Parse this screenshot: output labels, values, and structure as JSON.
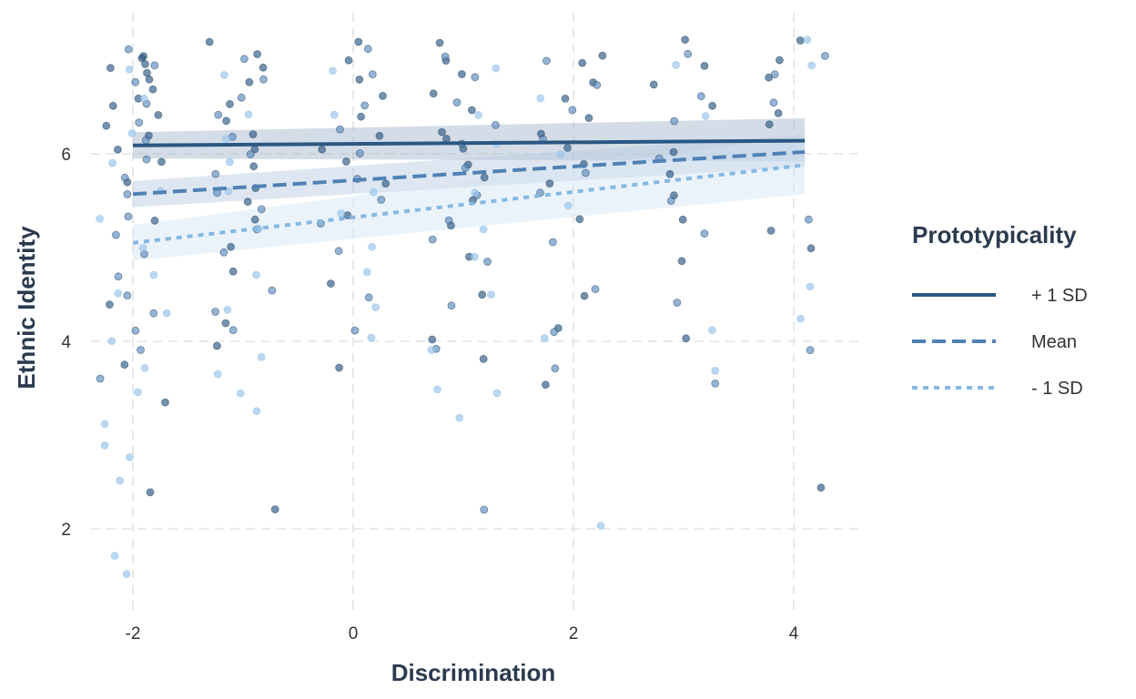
{
  "chart_data": {
    "type": "scatter",
    "title": "",
    "xlabel": "Discrimination",
    "ylabel": "Ethnic Identity",
    "xlim": [
      -2.35,
      4.65
    ],
    "ylim": [
      1.2,
      7.3
    ],
    "x_ticks": [
      -2,
      0,
      2,
      4
    ],
    "x_tick_labels": [
      "-2",
      "0",
      "2",
      "4"
    ],
    "y_ticks": [
      2,
      4,
      6
    ],
    "y_tick_labels": [
      "2",
      "4",
      "6"
    ],
    "grid": true,
    "legend": {
      "title": "Prototypicality",
      "placement": "right",
      "entries": [
        {
          "label": "+ 1 SD",
          "color": "#2a5783",
          "linestyle": "solid"
        },
        {
          "label": "Mean",
          "color": "#4f81b4",
          "linestyle": "dashed"
        },
        {
          "label": "- 1 SD",
          "color": "#86b8e2",
          "linestyle": "dotted"
        }
      ]
    },
    "lines": [
      {
        "group": "+ 1 SD",
        "x": [
          -2,
          4.1
        ],
        "y": [
          6.09,
          6.14
        ],
        "ci_lower": [
          5.95,
          5.92
        ],
        "ci_upper": [
          6.23,
          6.38
        ],
        "color": "#2a5783",
        "band_color": "#9fb3c9"
      },
      {
        "group": "Mean",
        "x": [
          -2,
          4.1
        ],
        "y": [
          5.57,
          6.02
        ],
        "ci_lower": [
          5.43,
          5.86
        ],
        "ci_upper": [
          5.71,
          6.2
        ],
        "color": "#4f81b4",
        "band_color": "#b6cae0"
      },
      {
        "group": "- 1 SD",
        "x": [
          -2,
          4.1
        ],
        "y": [
          5.05,
          5.88
        ],
        "ci_lower": [
          4.86,
          5.57
        ],
        "ci_upper": [
          5.24,
          6.19
        ],
        "color": "#86b8e2",
        "band_color": "#d3e5f5"
      }
    ],
    "points": [
      {
        "x": -2,
        "y": 7.05,
        "g": "+ 1 SD"
      },
      {
        "x": -2,
        "y": 7.0,
        "g": "+ 1 SD"
      },
      {
        "x": -2,
        "y": 6.95,
        "g": "+ 1 SD"
      },
      {
        "x": -2,
        "y": 6.9,
        "g": "+ 1 SD"
      },
      {
        "x": -2,
        "y": 6.85,
        "g": "+ 1 SD"
      },
      {
        "x": -2,
        "y": 6.8,
        "g": "+ 1 SD"
      },
      {
        "x": -2,
        "y": 6.7,
        "g": "+ 1 SD"
      },
      {
        "x": -2,
        "y": 6.6,
        "g": "+ 1 SD"
      },
      {
        "x": -2,
        "y": 6.5,
        "g": "+ 1 SD"
      },
      {
        "x": -2,
        "y": 6.4,
        "g": "+ 1 SD"
      },
      {
        "x": -2,
        "y": 6.3,
        "g": "+ 1 SD"
      },
      {
        "x": -2,
        "y": 6.2,
        "g": "+ 1 SD"
      },
      {
        "x": -2,
        "y": 6.05,
        "g": "+ 1 SD"
      },
      {
        "x": -2,
        "y": 5.9,
        "g": "+ 1 SD"
      },
      {
        "x": -2,
        "y": 5.7,
        "g": "+ 1 SD"
      },
      {
        "x": -2,
        "y": 5.3,
        "g": "+ 1 SD"
      },
      {
        "x": -2,
        "y": 4.4,
        "g": "+ 1 SD"
      },
      {
        "x": -2,
        "y": 3.75,
        "g": "+ 1 SD"
      },
      {
        "x": -2,
        "y": 3.35,
        "g": "+ 1 SD"
      },
      {
        "x": -2,
        "y": 2.4,
        "g": "+ 1 SD"
      },
      {
        "x": -2,
        "y": 7.1,
        "g": "Mean"
      },
      {
        "x": -2,
        "y": 6.95,
        "g": "Mean"
      },
      {
        "x": -2,
        "y": 6.75,
        "g": "Mean"
      },
      {
        "x": -2,
        "y": 6.55,
        "g": "Mean"
      },
      {
        "x": -2,
        "y": 6.35,
        "g": "Mean"
      },
      {
        "x": -2,
        "y": 6.15,
        "g": "Mean"
      },
      {
        "x": -2,
        "y": 5.95,
        "g": "Mean"
      },
      {
        "x": -2,
        "y": 5.75,
        "g": "Mean"
      },
      {
        "x": -2,
        "y": 5.55,
        "g": "Mean"
      },
      {
        "x": -2,
        "y": 5.35,
        "g": "Mean"
      },
      {
        "x": -2,
        "y": 5.15,
        "g": "Mean"
      },
      {
        "x": -2,
        "y": 4.95,
        "g": "Mean"
      },
      {
        "x": -2,
        "y": 4.7,
        "g": "Mean"
      },
      {
        "x": -2,
        "y": 4.5,
        "g": "Mean"
      },
      {
        "x": -2,
        "y": 4.3,
        "g": "Mean"
      },
      {
        "x": -2,
        "y": 4.1,
        "g": "Mean"
      },
      {
        "x": -2,
        "y": 3.9,
        "g": "Mean"
      },
      {
        "x": -2,
        "y": 3.6,
        "g": "Mean"
      },
      {
        "x": -2,
        "y": 6.9,
        "g": "- 1 SD"
      },
      {
        "x": -2,
        "y": 6.6,
        "g": "- 1 SD"
      },
      {
        "x": -2,
        "y": 6.2,
        "g": "- 1 SD"
      },
      {
        "x": -2,
        "y": 5.9,
        "g": "- 1 SD"
      },
      {
        "x": -2,
        "y": 5.6,
        "g": "- 1 SD"
      },
      {
        "x": -2,
        "y": 5.3,
        "g": "- 1 SD"
      },
      {
        "x": -2,
        "y": 5.0,
        "g": "- 1 SD"
      },
      {
        "x": -2,
        "y": 4.7,
        "g": "- 1 SD"
      },
      {
        "x": -2,
        "y": 4.5,
        "g": "- 1 SD"
      },
      {
        "x": -2,
        "y": 4.3,
        "g": "- 1 SD"
      },
      {
        "x": -2,
        "y": 4.0,
        "g": "- 1 SD"
      },
      {
        "x": -2,
        "y": 3.7,
        "g": "- 1 SD"
      },
      {
        "x": -2,
        "y": 3.45,
        "g": "- 1 SD"
      },
      {
        "x": -2,
        "y": 3.1,
        "g": "- 1 SD"
      },
      {
        "x": -2,
        "y": 2.9,
        "g": "- 1 SD"
      },
      {
        "x": -2,
        "y": 2.75,
        "g": "- 1 SD"
      },
      {
        "x": -2,
        "y": 2.5,
        "g": "- 1 SD"
      },
      {
        "x": -2,
        "y": 1.7,
        "g": "- 1 SD"
      },
      {
        "x": -2,
        "y": 1.52,
        "g": "- 1 SD"
      },
      {
        "x": -1,
        "y": 7.2,
        "g": "+ 1 SD"
      },
      {
        "x": -1,
        "y": 7.05,
        "g": "+ 1 SD"
      },
      {
        "x": -1,
        "y": 6.9,
        "g": "+ 1 SD"
      },
      {
        "x": -1,
        "y": 6.75,
        "g": "+ 1 SD"
      },
      {
        "x": -1,
        "y": 6.55,
        "g": "+ 1 SD"
      },
      {
        "x": -1,
        "y": 6.35,
        "g": "+ 1 SD"
      },
      {
        "x": -1,
        "y": 6.2,
        "g": "+ 1 SD"
      },
      {
        "x": -1,
        "y": 6.05,
        "g": "+ 1 SD"
      },
      {
        "x": -1,
        "y": 5.85,
        "g": "+ 1 SD"
      },
      {
        "x": -1,
        "y": 5.65,
        "g": "+ 1 SD"
      },
      {
        "x": -1,
        "y": 5.5,
        "g": "+ 1 SD"
      },
      {
        "x": -1,
        "y": 5.3,
        "g": "+ 1 SD"
      },
      {
        "x": -1,
        "y": 5.0,
        "g": "+ 1 SD"
      },
      {
        "x": -1,
        "y": 4.75,
        "g": "+ 1 SD"
      },
      {
        "x": -1,
        "y": 4.2,
        "g": "+ 1 SD"
      },
      {
        "x": -1,
        "y": 3.95,
        "g": "+ 1 SD"
      },
      {
        "x": -1,
        "y": 2.2,
        "g": "+ 1 SD"
      },
      {
        "x": -1,
        "y": 7.0,
        "g": "Mean"
      },
      {
        "x": -1,
        "y": 6.8,
        "g": "Mean"
      },
      {
        "x": -1,
        "y": 6.6,
        "g": "Mean"
      },
      {
        "x": -1,
        "y": 6.4,
        "g": "Mean"
      },
      {
        "x": -1,
        "y": 6.2,
        "g": "Mean"
      },
      {
        "x": -1,
        "y": 6.0,
        "g": "Mean"
      },
      {
        "x": -1,
        "y": 5.8,
        "g": "Mean"
      },
      {
        "x": -1,
        "y": 5.6,
        "g": "Mean"
      },
      {
        "x": -1,
        "y": 5.4,
        "g": "Mean"
      },
      {
        "x": -1,
        "y": 5.2,
        "g": "Mean"
      },
      {
        "x": -1,
        "y": 4.95,
        "g": "Mean"
      },
      {
        "x": -1,
        "y": 4.55,
        "g": "Mean"
      },
      {
        "x": -1,
        "y": 4.3,
        "g": "Mean"
      },
      {
        "x": -1,
        "y": 4.1,
        "g": "Mean"
      },
      {
        "x": -1,
        "y": 6.85,
        "g": "- 1 SD"
      },
      {
        "x": -1,
        "y": 6.4,
        "g": "- 1 SD"
      },
      {
        "x": -1,
        "y": 6.15,
        "g": "- 1 SD"
      },
      {
        "x": -1,
        "y": 5.9,
        "g": "- 1 SD"
      },
      {
        "x": -1,
        "y": 5.6,
        "g": "- 1 SD"
      },
      {
        "x": -1,
        "y": 5.2,
        "g": "- 1 SD"
      },
      {
        "x": -1,
        "y": 4.7,
        "g": "- 1 SD"
      },
      {
        "x": -1,
        "y": 4.35,
        "g": "- 1 SD"
      },
      {
        "x": -1,
        "y": 3.85,
        "g": "- 1 SD"
      },
      {
        "x": -1,
        "y": 3.65,
        "g": "- 1 SD"
      },
      {
        "x": -1,
        "y": 3.45,
        "g": "- 1 SD"
      },
      {
        "x": -1,
        "y": 3.25,
        "g": "- 1 SD"
      },
      {
        "x": 0,
        "y": 7.2,
        "g": "+ 1 SD"
      },
      {
        "x": 0,
        "y": 7.0,
        "g": "+ 1 SD"
      },
      {
        "x": 0,
        "y": 6.8,
        "g": "+ 1 SD"
      },
      {
        "x": 0,
        "y": 6.6,
        "g": "+ 1 SD"
      },
      {
        "x": 0,
        "y": 6.4,
        "g": "+ 1 SD"
      },
      {
        "x": 0,
        "y": 6.2,
        "g": "+ 1 SD"
      },
      {
        "x": 0,
        "y": 6.05,
        "g": "+ 1 SD"
      },
      {
        "x": 0,
        "y": 5.9,
        "g": "+ 1 SD"
      },
      {
        "x": 0,
        "y": 5.7,
        "g": "+ 1 SD"
      },
      {
        "x": 0,
        "y": 5.35,
        "g": "+ 1 SD"
      },
      {
        "x": 0,
        "y": 4.6,
        "g": "+ 1 SD"
      },
      {
        "x": 0,
        "y": 3.7,
        "g": "+ 1 SD"
      },
      {
        "x": 0,
        "y": 7.1,
        "g": "Mean"
      },
      {
        "x": 0,
        "y": 6.85,
        "g": "Mean"
      },
      {
        "x": 0,
        "y": 6.5,
        "g": "Mean"
      },
      {
        "x": 0,
        "y": 6.25,
        "g": "Mean"
      },
      {
        "x": 0,
        "y": 6.0,
        "g": "Mean"
      },
      {
        "x": 0,
        "y": 5.75,
        "g": "Mean"
      },
      {
        "x": 0,
        "y": 5.5,
        "g": "Mean"
      },
      {
        "x": 0,
        "y": 5.25,
        "g": "Mean"
      },
      {
        "x": 0,
        "y": 4.95,
        "g": "Mean"
      },
      {
        "x": 0,
        "y": 4.45,
        "g": "Mean"
      },
      {
        "x": 0,
        "y": 4.1,
        "g": "Mean"
      },
      {
        "x": 0,
        "y": 6.9,
        "g": "- 1 SD"
      },
      {
        "x": 0,
        "y": 6.4,
        "g": "- 1 SD"
      },
      {
        "x": 0,
        "y": 5.6,
        "g": "- 1 SD"
      },
      {
        "x": 0,
        "y": 5.35,
        "g": "- 1 SD"
      },
      {
        "x": 0,
        "y": 5.0,
        "g": "- 1 SD"
      },
      {
        "x": 0,
        "y": 4.75,
        "g": "- 1 SD"
      },
      {
        "x": 0,
        "y": 4.35,
        "g": "- 1 SD"
      },
      {
        "x": 0,
        "y": 4.05,
        "g": "- 1 SD"
      },
      {
        "x": 1,
        "y": 7.2,
        "g": "+ 1 SD"
      },
      {
        "x": 1,
        "y": 7.0,
        "g": "+ 1 SD"
      },
      {
        "x": 1,
        "y": 6.85,
        "g": "+ 1 SD"
      },
      {
        "x": 1,
        "y": 6.65,
        "g": "+ 1 SD"
      },
      {
        "x": 1,
        "y": 6.45,
        "g": "+ 1 SD"
      },
      {
        "x": 1,
        "y": 6.25,
        "g": "+ 1 SD"
      },
      {
        "x": 1,
        "y": 6.15,
        "g": "+ 1 SD"
      },
      {
        "x": 1,
        "y": 6.05,
        "g": "+ 1 SD"
      },
      {
        "x": 1,
        "y": 5.9,
        "g": "+ 1 SD"
      },
      {
        "x": 1,
        "y": 5.75,
        "g": "+ 1 SD"
      },
      {
        "x": 1,
        "y": 5.5,
        "g": "+ 1 SD"
      },
      {
        "x": 1,
        "y": 5.25,
        "g": "+ 1 SD"
      },
      {
        "x": 1,
        "y": 4.9,
        "g": "+ 1 SD"
      },
      {
        "x": 1,
        "y": 4.5,
        "g": "+ 1 SD"
      },
      {
        "x": 1,
        "y": 4.0,
        "g": "+ 1 SD"
      },
      {
        "x": 1,
        "y": 3.8,
        "g": "+ 1 SD"
      },
      {
        "x": 1,
        "y": 7.05,
        "g": "Mean"
      },
      {
        "x": 1,
        "y": 6.8,
        "g": "Mean"
      },
      {
        "x": 1,
        "y": 6.55,
        "g": "Mean"
      },
      {
        "x": 1,
        "y": 6.3,
        "g": "Mean"
      },
      {
        "x": 1,
        "y": 6.1,
        "g": "Mean"
      },
      {
        "x": 1,
        "y": 5.85,
        "g": "Mean"
      },
      {
        "x": 1,
        "y": 5.55,
        "g": "Mean"
      },
      {
        "x": 1,
        "y": 5.3,
        "g": "Mean"
      },
      {
        "x": 1,
        "y": 5.1,
        "g": "Mean"
      },
      {
        "x": 1,
        "y": 4.85,
        "g": "Mean"
      },
      {
        "x": 1,
        "y": 4.4,
        "g": "Mean"
      },
      {
        "x": 1,
        "y": 3.9,
        "g": "Mean"
      },
      {
        "x": 1,
        "y": 2.2,
        "g": "Mean"
      },
      {
        "x": 1,
        "y": 6.9,
        "g": "- 1 SD"
      },
      {
        "x": 1,
        "y": 6.4,
        "g": "- 1 SD"
      },
      {
        "x": 1,
        "y": 6.1,
        "g": "- 1 SD"
      },
      {
        "x": 1,
        "y": 5.6,
        "g": "- 1 SD"
      },
      {
        "x": 1,
        "y": 5.2,
        "g": "- 1 SD"
      },
      {
        "x": 1,
        "y": 4.9,
        "g": "- 1 SD"
      },
      {
        "x": 1,
        "y": 4.5,
        "g": "- 1 SD"
      },
      {
        "x": 1,
        "y": 3.9,
        "g": "- 1 SD"
      },
      {
        "x": 1,
        "y": 3.5,
        "g": "- 1 SD"
      },
      {
        "x": 1,
        "y": 3.45,
        "g": "- 1 SD"
      },
      {
        "x": 1,
        "y": 3.2,
        "g": "- 1 SD"
      },
      {
        "x": 2,
        "y": 7.05,
        "g": "+ 1 SD"
      },
      {
        "x": 2,
        "y": 6.95,
        "g": "+ 1 SD"
      },
      {
        "x": 2,
        "y": 6.75,
        "g": "+ 1 SD"
      },
      {
        "x": 2,
        "y": 6.6,
        "g": "+ 1 SD"
      },
      {
        "x": 2,
        "y": 6.4,
        "g": "+ 1 SD"
      },
      {
        "x": 2,
        "y": 6.2,
        "g": "+ 1 SD"
      },
      {
        "x": 2,
        "y": 6.05,
        "g": "+ 1 SD"
      },
      {
        "x": 2,
        "y": 5.9,
        "g": "+ 1 SD"
      },
      {
        "x": 2,
        "y": 5.7,
        "g": "+ 1 SD"
      },
      {
        "x": 2,
        "y": 5.3,
        "g": "+ 1 SD"
      },
      {
        "x": 2,
        "y": 4.5,
        "g": "+ 1 SD"
      },
      {
        "x": 2,
        "y": 4.15,
        "g": "+ 1 SD"
      },
      {
        "x": 2,
        "y": 3.55,
        "g": "+ 1 SD"
      },
      {
        "x": 2,
        "y": 7.0,
        "g": "Mean"
      },
      {
        "x": 2,
        "y": 6.75,
        "g": "Mean"
      },
      {
        "x": 2,
        "y": 6.45,
        "g": "Mean"
      },
      {
        "x": 2,
        "y": 6.15,
        "g": "Mean"
      },
      {
        "x": 2,
        "y": 5.8,
        "g": "Mean"
      },
      {
        "x": 2,
        "y": 5.6,
        "g": "Mean"
      },
      {
        "x": 2,
        "y": 5.05,
        "g": "Mean"
      },
      {
        "x": 2,
        "y": 4.55,
        "g": "Mean"
      },
      {
        "x": 2,
        "y": 4.1,
        "g": "Mean"
      },
      {
        "x": 2,
        "y": 3.7,
        "g": "Mean"
      },
      {
        "x": 2,
        "y": 6.6,
        "g": "- 1 SD"
      },
      {
        "x": 2,
        "y": 6.0,
        "g": "- 1 SD"
      },
      {
        "x": 2,
        "y": 5.45,
        "g": "- 1 SD"
      },
      {
        "x": 2,
        "y": 4.05,
        "g": "- 1 SD"
      },
      {
        "x": 2,
        "y": 2.05,
        "g": "- 1 SD"
      },
      {
        "x": 3,
        "y": 7.2,
        "g": "+ 1 SD"
      },
      {
        "x": 3,
        "y": 6.95,
        "g": "+ 1 SD"
      },
      {
        "x": 3,
        "y": 6.75,
        "g": "+ 1 SD"
      },
      {
        "x": 3,
        "y": 6.5,
        "g": "+ 1 SD"
      },
      {
        "x": 3,
        "y": 6.0,
        "g": "+ 1 SD"
      },
      {
        "x": 3,
        "y": 5.8,
        "g": "+ 1 SD"
      },
      {
        "x": 3,
        "y": 5.55,
        "g": "+ 1 SD"
      },
      {
        "x": 3,
        "y": 5.3,
        "g": "+ 1 SD"
      },
      {
        "x": 3,
        "y": 4.85,
        "g": "+ 1 SD"
      },
      {
        "x": 3,
        "y": 4.05,
        "g": "+ 1 SD"
      },
      {
        "x": 3,
        "y": 7.05,
        "g": "Mean"
      },
      {
        "x": 3,
        "y": 6.6,
        "g": "Mean"
      },
      {
        "x": 3,
        "y": 6.35,
        "g": "Mean"
      },
      {
        "x": 3,
        "y": 5.95,
        "g": "Mean"
      },
      {
        "x": 3,
        "y": 5.5,
        "g": "Mean"
      },
      {
        "x": 3,
        "y": 5.15,
        "g": "Mean"
      },
      {
        "x": 3,
        "y": 4.4,
        "g": "Mean"
      },
      {
        "x": 3,
        "y": 3.55,
        "g": "Mean"
      },
      {
        "x": 3,
        "y": 6.95,
        "g": "- 1 SD"
      },
      {
        "x": 3,
        "y": 6.4,
        "g": "- 1 SD"
      },
      {
        "x": 3,
        "y": 4.1,
        "g": "- 1 SD"
      },
      {
        "x": 3,
        "y": 3.7,
        "g": "- 1 SD"
      },
      {
        "x": 4,
        "y": 7.2,
        "g": "+ 1 SD"
      },
      {
        "x": 4,
        "y": 7.0,
        "g": "+ 1 SD"
      },
      {
        "x": 4,
        "y": 6.8,
        "g": "+ 1 SD"
      },
      {
        "x": 4,
        "y": 6.45,
        "g": "+ 1 SD"
      },
      {
        "x": 4,
        "y": 6.3,
        "g": "+ 1 SD"
      },
      {
        "x": 4,
        "y": 5.2,
        "g": "+ 1 SD"
      },
      {
        "x": 4,
        "y": 5.0,
        "g": "+ 1 SD"
      },
      {
        "x": 4,
        "y": 2.45,
        "g": "+ 1 SD"
      },
      {
        "x": 4,
        "y": 7.05,
        "g": "Mean"
      },
      {
        "x": 4,
        "y": 6.85,
        "g": "Mean"
      },
      {
        "x": 4,
        "y": 6.55,
        "g": "Mean"
      },
      {
        "x": 4,
        "y": 5.3,
        "g": "Mean"
      },
      {
        "x": 4,
        "y": 3.9,
        "g": "Mean"
      },
      {
        "x": 4,
        "y": 7.2,
        "g": "- 1 SD"
      },
      {
        "x": 4,
        "y": 6.95,
        "g": "- 1 SD"
      },
      {
        "x": 4,
        "y": 4.6,
        "g": "- 1 SD"
      },
      {
        "x": 4,
        "y": 4.25,
        "g": "- 1 SD"
      }
    ],
    "point_colors": {
      "+ 1 SD": "#2a5783",
      "Mean": "#5a8cbf",
      "- 1 SD": "#9ec8ec"
    }
  }
}
